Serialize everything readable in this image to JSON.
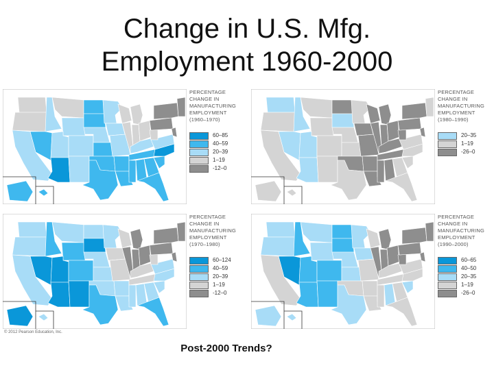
{
  "slide": {
    "title_line1": "Change in U.S. Mfg.",
    "title_line2": "Employment 1960-2000",
    "copyright": "© 2012 Pearson Education, Inc.",
    "footer_question": "Post-2000 Trends?"
  },
  "colors": {
    "dark_blue": "#0a97d9",
    "mid_blue": "#3fb8ee",
    "light_blue": "#a8dcf7",
    "light_gray": "#d4d4d4",
    "dark_gray": "#8e8e8e",
    "water": "#ffffff"
  },
  "maps": [
    {
      "legend_title": [
        "Percentage",
        "change in",
        "manufacturing",
        "employment"
      ],
      "period": "(1960–1970)",
      "legend": [
        {
          "label": "60–85",
          "color": "#0a97d9"
        },
        {
          "label": "40–59",
          "color": "#3fb8ee"
        },
        {
          "label": "20–39",
          "color": "#a8dcf7"
        },
        {
          "label": "1–19",
          "color": "#d4d4d4"
        },
        {
          "label": "-12–0",
          "color": "#8e8e8e"
        }
      ]
    },
    {
      "legend_title": [
        "Percentage",
        "change in",
        "manufacturing",
        "employment"
      ],
      "period": "(1980–1990)",
      "legend": [
        {
          "label": "20–35",
          "color": "#a8dcf7"
        },
        {
          "label": "1–19",
          "color": "#d4d4d4"
        },
        {
          "label": "-26–0",
          "color": "#8e8e8e"
        }
      ]
    },
    {
      "legend_title": [
        "Percentage",
        "change in",
        "manufacturing",
        "employment"
      ],
      "period": "(1970–1980)",
      "legend": [
        {
          "label": "60–124",
          "color": "#0a97d9"
        },
        {
          "label": "40–59",
          "color": "#3fb8ee"
        },
        {
          "label": "20–39",
          "color": "#a8dcf7"
        },
        {
          "label": "1–19",
          "color": "#d4d4d4"
        },
        {
          "label": "-12–0",
          "color": "#8e8e8e"
        }
      ]
    },
    {
      "legend_title": [
        "Percentage",
        "change in",
        "manufacturing",
        "employment"
      ],
      "period": "(1990–2000)",
      "legend": [
        {
          "label": "60–65",
          "color": "#0a97d9"
        },
        {
          "label": "40–50",
          "color": "#3fb8ee"
        },
        {
          "label": "20–35",
          "color": "#a8dcf7"
        },
        {
          "label": "1–19",
          "color": "#d4d4d4"
        },
        {
          "label": "-26–0",
          "color": "#8e8e8e"
        }
      ]
    }
  ]
}
